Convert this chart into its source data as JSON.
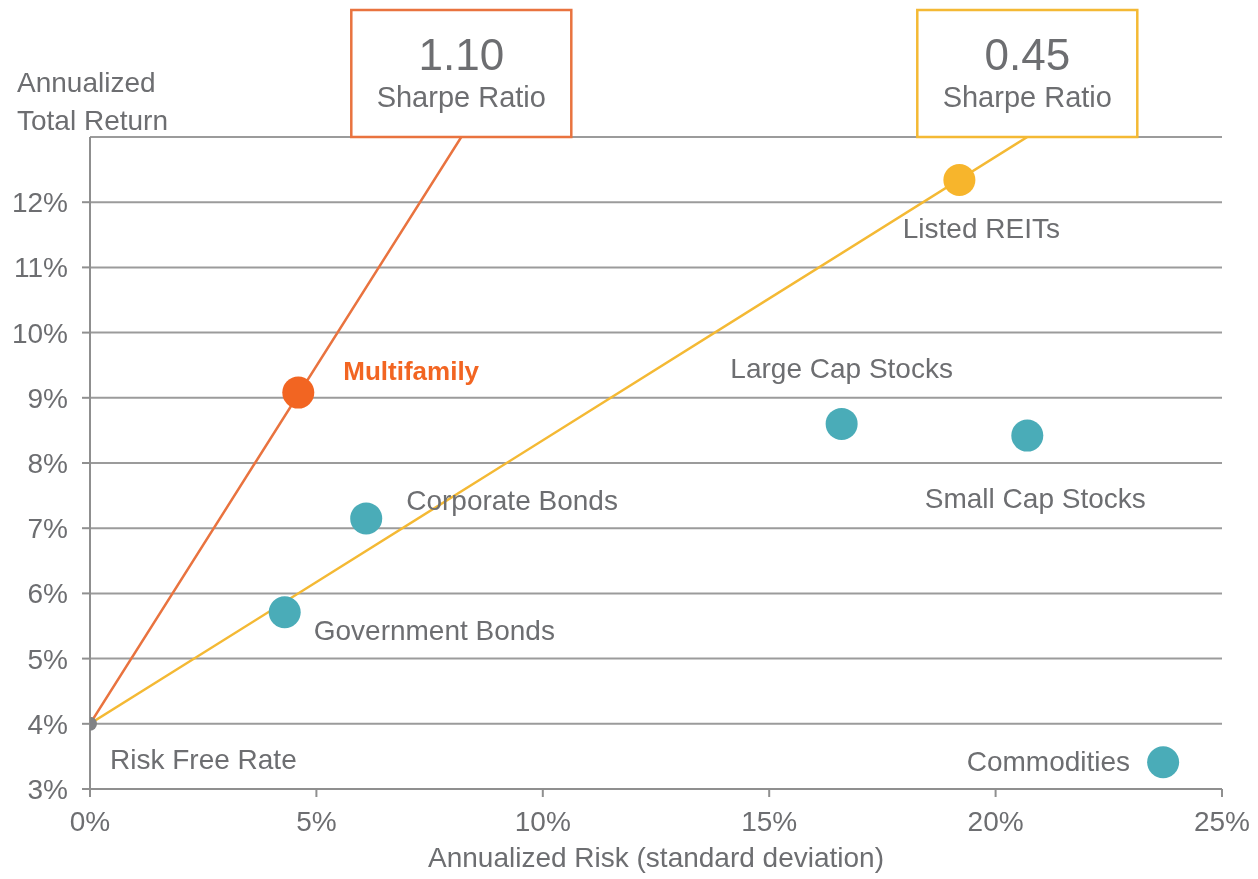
{
  "chart_data": {
    "type": "scatter",
    "xlabel": "Annualized Risk (standard deviation)",
    "ylabel": "Annualized\nTotal Return",
    "xlim": [
      0,
      25
    ],
    "xticks": [
      {
        "value": 0,
        "label": "0%"
      },
      {
        "value": 5,
        "label": "5%"
      },
      {
        "value": 10,
        "label": "10%"
      },
      {
        "value": 15,
        "label": "15%"
      },
      {
        "value": 20,
        "label": "20%"
      },
      {
        "value": 25,
        "label": "25%"
      }
    ],
    "ylim": [
      3,
      13
    ],
    "yticks": [
      {
        "value": 3,
        "label": "3%"
      },
      {
        "value": 4,
        "label": "4%"
      },
      {
        "value": 5,
        "label": "5%"
      },
      {
        "value": 6,
        "label": "6%"
      },
      {
        "value": 7,
        "label": "7%"
      },
      {
        "value": 8,
        "label": "8%"
      },
      {
        "value": 9,
        "label": "9%"
      },
      {
        "value": 10,
        "label": "10%"
      },
      {
        "value": 11,
        "label": "11%"
      },
      {
        "value": 12,
        "label": "12%"
      }
    ],
    "grid": "y",
    "marker": "circle",
    "series": [
      {
        "type": "line",
        "color": "#e9733f",
        "x": [
          0,
          8.2
        ],
        "values": [
          4,
          13
        ],
        "marker": "none"
      },
      {
        "type": "line",
        "color": "#f4b934",
        "x": [
          0,
          20.7
        ],
        "values": [
          4,
          13
        ],
        "marker": "none"
      },
      {
        "x": [
          4.6,
          19.2,
          16.6,
          20.7,
          6.1,
          4.3,
          23.7
        ],
        "values": [
          9.08,
          12.34,
          8.6,
          8.42,
          7.15,
          5.71,
          3.41
        ],
        "colors": [
          "#f26522",
          "#f7b52c",
          "#4aacb8",
          "#4aacb8",
          "#4aacb8",
          "#4aacb8",
          "#4aacb8"
        ]
      },
      {
        "x": [
          0
        ],
        "values": [
          4
        ],
        "color": "#808285"
      }
    ],
    "annotations": [
      {
        "text": "Multifamily",
        "x": 4.6,
        "y": 9.08
      },
      {
        "text": "Listed REITs",
        "x": 19.2,
        "y": 12.34
      },
      {
        "text": "Large Cap Stocks",
        "x": 16.6,
        "y": 8.6
      },
      {
        "text": "Small Cap Stocks",
        "x": 20.7,
        "y": 8.42
      },
      {
        "text": "Corporate Bonds",
        "x": 6.1,
        "y": 7.15
      },
      {
        "text": "Government Bonds",
        "x": 4.3,
        "y": 5.71
      },
      {
        "text": "Risk Free Rate",
        "x": 0,
        "y": 4
      },
      {
        "text": "Commodities",
        "x": 23.7,
        "y": 3.41
      },
      {
        "text": "1.10\nSharpe Ratio",
        "x": 8.2,
        "y": 13
      },
      {
        "text": "0.45\nSharpe Ratio",
        "x": 20.7,
        "y": 13
      }
    ]
  }
}
